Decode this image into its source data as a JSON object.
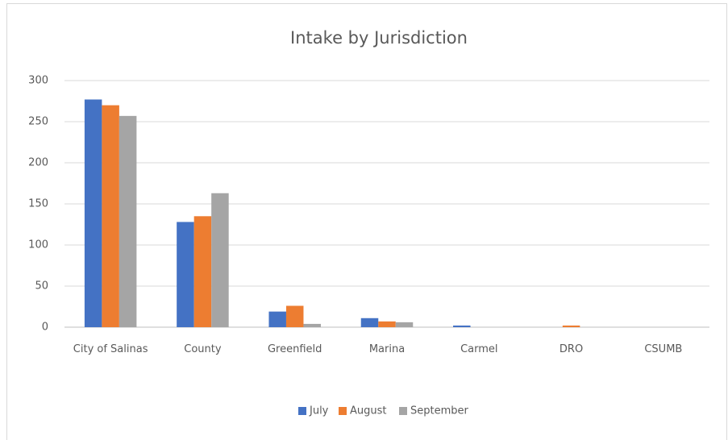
{
  "chart_data": {
    "type": "bar",
    "title": "Intake by Jurisdiction",
    "categories": [
      "City of Salinas",
      "County",
      "Greenfield",
      "Marina",
      "Carmel",
      "DRO",
      "CSUMB"
    ],
    "series": [
      {
        "name": "July",
        "color": "#4472c4",
        "values": [
          277,
          128,
          19,
          11,
          2,
          0,
          0
        ]
      },
      {
        "name": "August",
        "color": "#ed7d31",
        "values": [
          270,
          135,
          26,
          7,
          0,
          2,
          0
        ]
      },
      {
        "name": "September",
        "color": "#a5a5a5",
        "values": [
          257,
          163,
          4,
          6,
          0,
          0,
          0
        ]
      }
    ],
    "ylim": [
      0,
      300
    ],
    "yticks": [
      0,
      50,
      100,
      150,
      200,
      250,
      300
    ],
    "grid": true,
    "legend": "bottom"
  }
}
